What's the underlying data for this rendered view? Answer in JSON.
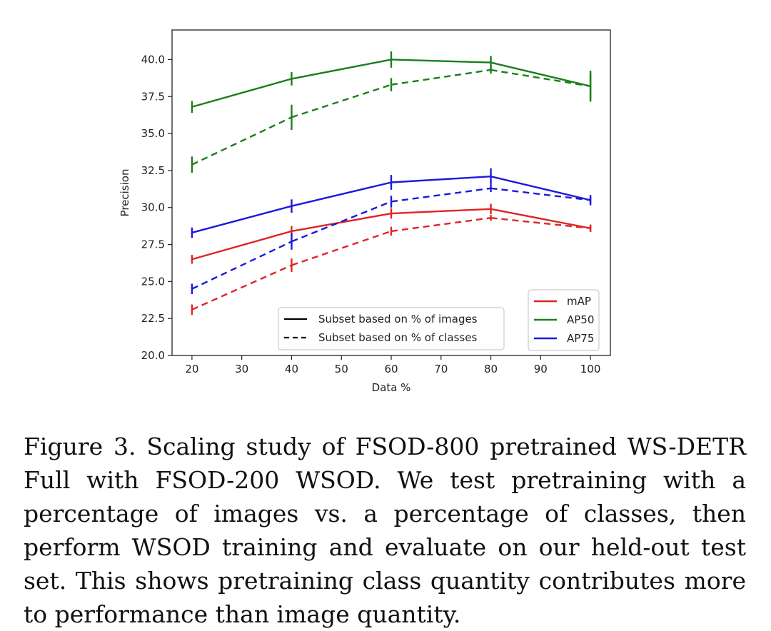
{
  "figure": {
    "caption": "Figure 3.  Scaling study of FSOD-800 pretrained WS-DETR Full with FSOD-200 WSOD. We test pretraining with a percentage of images vs.  a percentage of classes, then perform WSOD training and evaluate on our held-out test set. This shows pretraining class quantity contributes more to performance than image quantity."
  },
  "chart_data": {
    "type": "line",
    "xlabel": "Data %",
    "ylabel": "Precision",
    "xlim": [
      16,
      104
    ],
    "ylim": [
      20.0,
      42.0
    ],
    "xticks": [
      20,
      30,
      40,
      50,
      60,
      70,
      80,
      90,
      100
    ],
    "yticks": [
      "20.0",
      "22.5",
      "25.0",
      "27.5",
      "30.0",
      "32.5",
      "35.0",
      "37.5",
      "40.0"
    ],
    "grid": false,
    "x": [
      20,
      40,
      60,
      80,
      100
    ],
    "series": [
      {
        "name": "mAP",
        "linestyle": "solid",
        "color": "#e02424",
        "values": [
          26.5,
          28.4,
          29.6,
          29.9,
          28.6
        ],
        "error": [
          0.3,
          0.35,
          0.35,
          0.35,
          0.2
        ]
      },
      {
        "name": "mAP",
        "linestyle": "dashed",
        "color": "#e02424",
        "values": [
          23.1,
          26.1,
          28.4,
          29.3,
          28.6
        ],
        "error": [
          0.35,
          0.45,
          0.3,
          0.2,
          0.25
        ]
      },
      {
        "name": "AP50",
        "linestyle": "solid",
        "color": "#1a7f1a",
        "values": [
          36.8,
          38.7,
          40.0,
          39.8,
          38.2
        ],
        "error": [
          0.4,
          0.45,
          0.55,
          0.45,
          1.05
        ]
      },
      {
        "name": "AP50",
        "linestyle": "dashed",
        "color": "#1a7f1a",
        "values": [
          32.9,
          36.1,
          38.3,
          39.3,
          38.2
        ],
        "error": [
          0.55,
          0.85,
          0.45,
          0.25,
          0.9
        ]
      },
      {
        "name": "AP75",
        "linestyle": "solid",
        "color": "#1a1adb",
        "values": [
          28.3,
          30.1,
          31.7,
          32.1,
          30.5
        ],
        "error": [
          0.35,
          0.45,
          0.5,
          0.55,
          0.35
        ]
      },
      {
        "name": "AP75",
        "linestyle": "dashed",
        "color": "#1a1adb",
        "values": [
          24.5,
          27.7,
          30.4,
          31.3,
          30.5
        ],
        "error": [
          0.35,
          0.55,
          0.4,
          0.25,
          0.2
        ]
      }
    ],
    "legend_style": {
      "placement": "lower-center",
      "entries": [
        {
          "label": "Subset based on % of images",
          "linestyle": "solid",
          "color": "#000000"
        },
        {
          "label": "Subset based on % of classes",
          "linestyle": "dashed",
          "color": "#000000"
        }
      ]
    },
    "legend_metric": {
      "placement": "lower-right",
      "entries": [
        {
          "label": "mAP",
          "color": "#e02424"
        },
        {
          "label": "AP50",
          "color": "#1a7f1a"
        },
        {
          "label": "AP75",
          "color": "#1a1adb"
        }
      ]
    }
  }
}
